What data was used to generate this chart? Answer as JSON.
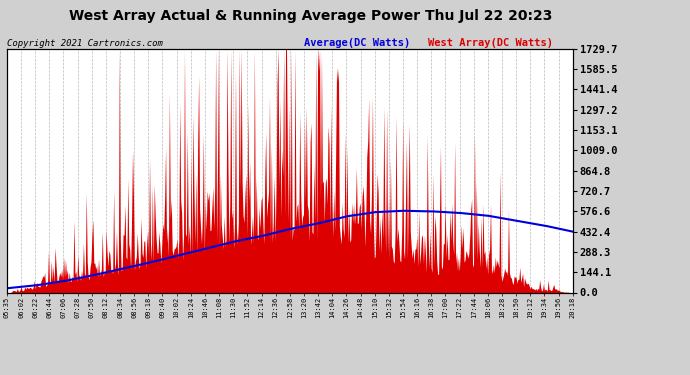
{
  "title": "West Array Actual & Running Average Power Thu Jul 22 20:23",
  "copyright": "Copyright 2021 Cartronics.com",
  "legend_avg": "Average(DC Watts)",
  "legend_west": "West Array(DC Watts)",
  "ylabel_values": [
    0.0,
    144.1,
    288.3,
    432.4,
    576.6,
    720.7,
    864.8,
    1009.0,
    1153.1,
    1297.2,
    1441.4,
    1585.5,
    1729.7
  ],
  "ymax": 1729.7,
  "ymin": 0.0,
  "fig_bg_color": "#d0d0d0",
  "plot_bg_color": "#ffffff",
  "grid_color": "#aaaaaa",
  "bar_color": "#dd0000",
  "avg_line_color": "#0000dd",
  "title_color": "#000000",
  "x_tick_labels": [
    "05:35",
    "06:02",
    "06:22",
    "06:44",
    "07:06",
    "07:28",
    "07:50",
    "08:12",
    "08:34",
    "08:56",
    "09:18",
    "09:40",
    "10:02",
    "10:24",
    "10:46",
    "11:08",
    "11:30",
    "11:52",
    "12:14",
    "12:36",
    "12:58",
    "13:20",
    "13:42",
    "14:04",
    "14:26",
    "14:48",
    "15:10",
    "15:32",
    "15:54",
    "16:16",
    "16:38",
    "17:00",
    "17:22",
    "17:44",
    "18:06",
    "18:28",
    "18:50",
    "19:12",
    "19:34",
    "19:56",
    "20:18"
  ],
  "avg_x": [
    0,
    0.05,
    0.1,
    0.15,
    0.2,
    0.25,
    0.3,
    0.35,
    0.4,
    0.45,
    0.5,
    0.55,
    0.6,
    0.65,
    0.7,
    0.75,
    0.8,
    0.85,
    0.9,
    0.95,
    1.0
  ],
  "avg_y": [
    30,
    50,
    80,
    120,
    165,
    210,
    260,
    310,
    360,
    400,
    450,
    490,
    540,
    570,
    580,
    576,
    565,
    545,
    510,
    475,
    432
  ]
}
